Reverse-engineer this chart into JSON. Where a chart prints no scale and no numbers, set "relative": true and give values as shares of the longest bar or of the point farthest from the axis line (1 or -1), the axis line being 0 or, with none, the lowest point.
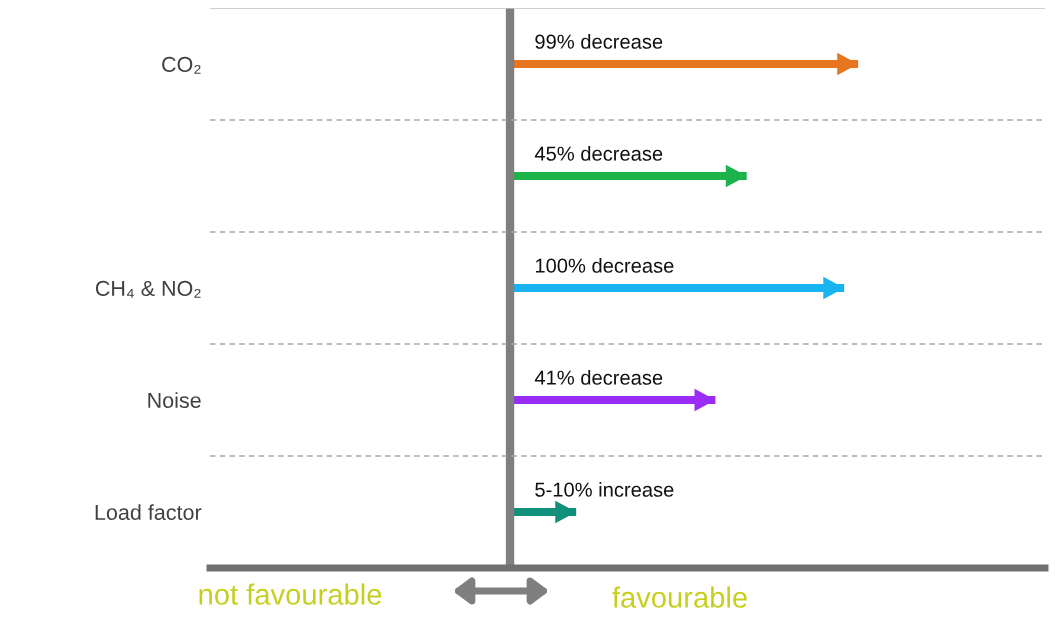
{
  "chart_data": {
    "type": "bar",
    "orientation": "horizontal",
    "relative": true,
    "categories": [
      "CO₂",
      null,
      "CH₄ & NO₂",
      "Noise",
      "Load factor"
    ],
    "values": [
      1,
      0.68,
      0.96,
      0.59,
      0.19
    ],
    "colors": [
      "#e8761e",
      "#1db24a",
      "#19b4f0",
      "#9a2cf6",
      "#11907c"
    ],
    "annotations": [
      "99% decrease",
      "45% decrease",
      "100% decrease",
      "41% decrease",
      "5-10% increase",
      "not favourable",
      "favourable"
    ]
  }
}
